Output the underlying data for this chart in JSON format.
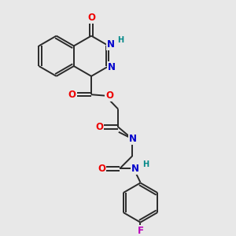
{
  "bg_color": "#e8e8e8",
  "bond_color": "#2a2a2a",
  "bond_width": 1.4,
  "atom_colors": {
    "O": "#ee0000",
    "N": "#0000cc",
    "H": "#008888",
    "F": "#bb00bb",
    "C": "#2a2a2a"
  },
  "fs": 8.5,
  "fsh": 7.0
}
